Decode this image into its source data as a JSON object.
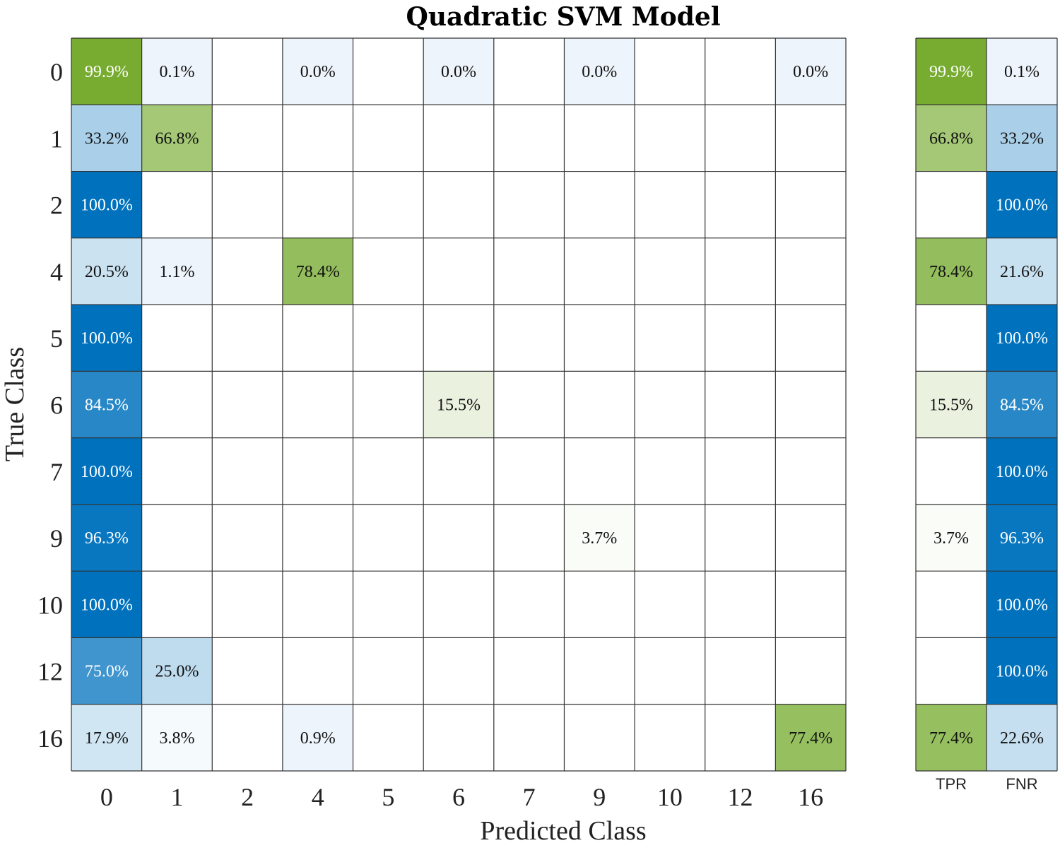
{
  "chart_data": {
    "type": "heatmap",
    "title": "Quadratic SVM Model",
    "xlabel": "Predicted Class",
    "ylabel": "True Class",
    "predicted_classes": [
      "0",
      "1",
      "2",
      "4",
      "5",
      "6",
      "7",
      "9",
      "10",
      "12",
      "16"
    ],
    "true_classes": [
      "0",
      "1",
      "2",
      "4",
      "5",
      "6",
      "7",
      "9",
      "10",
      "12",
      "16"
    ],
    "cells": [
      [
        99.9,
        0.1,
        null,
        0.0,
        null,
        0.0,
        null,
        0.0,
        null,
        null,
        0.0
      ],
      [
        33.2,
        66.8,
        null,
        null,
        null,
        null,
        null,
        null,
        null,
        null,
        null
      ],
      [
        100.0,
        null,
        null,
        null,
        null,
        null,
        null,
        null,
        null,
        null,
        null
      ],
      [
        20.5,
        1.1,
        null,
        78.4,
        null,
        null,
        null,
        null,
        null,
        null,
        null
      ],
      [
        100.0,
        null,
        null,
        null,
        null,
        null,
        null,
        null,
        null,
        null,
        null
      ],
      [
        84.5,
        null,
        null,
        null,
        null,
        15.5,
        null,
        null,
        null,
        null,
        null
      ],
      [
        100.0,
        null,
        null,
        null,
        null,
        null,
        null,
        null,
        null,
        null,
        null
      ],
      [
        96.3,
        null,
        null,
        null,
        null,
        null,
        null,
        3.7,
        null,
        null,
        null
      ],
      [
        100.0,
        null,
        null,
        null,
        null,
        null,
        null,
        null,
        null,
        null,
        null
      ],
      [
        75.0,
        25.0,
        null,
        null,
        null,
        null,
        null,
        null,
        null,
        null,
        null
      ],
      [
        17.9,
        3.8,
        null,
        0.9,
        null,
        null,
        null,
        null,
        null,
        null,
        77.4
      ]
    ],
    "summary": {
      "columns": [
        "TPR",
        "FNR"
      ],
      "values": [
        [
          99.9,
          0.1
        ],
        [
          66.8,
          33.2
        ],
        [
          null,
          100.0
        ],
        [
          78.4,
          21.6
        ],
        [
          null,
          100.0
        ],
        [
          15.5,
          84.5
        ],
        [
          null,
          100.0
        ],
        [
          3.7,
          96.3
        ],
        [
          null,
          100.0
        ],
        [
          null,
          100.0
        ],
        [
          77.4,
          22.6
        ]
      ]
    },
    "value_format": "percent, one decimal",
    "colors": {
      "correct": "#77AC30",
      "incorrect": "#0072BD",
      "grid": "#333333"
    }
  }
}
